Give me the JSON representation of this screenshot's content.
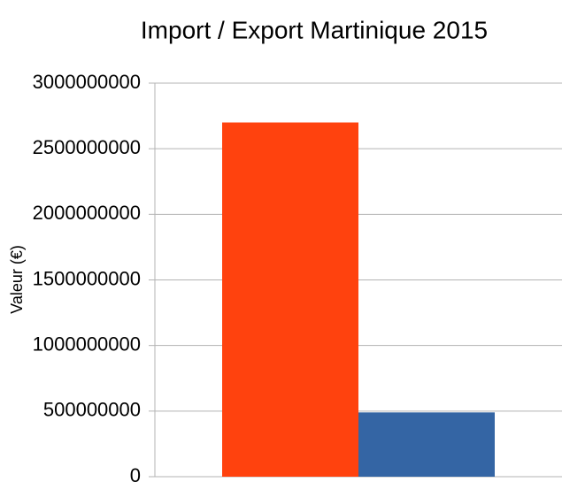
{
  "chart_data": {
    "type": "bar",
    "title": "Import / Export Martinique 2015",
    "y_label": "Valeur (€)",
    "series": [
      {
        "color": "#ff420e",
        "values": [
          2700000000
        ]
      },
      {
        "color": "#3465a4",
        "values": [
          490000000
        ]
      }
    ],
    "ylim": [
      0,
      3000000000
    ],
    "yticks": [
      0,
      500000000,
      1000000000,
      1500000000,
      2000000000,
      2500000000,
      3000000000
    ],
    "grid": true
  }
}
